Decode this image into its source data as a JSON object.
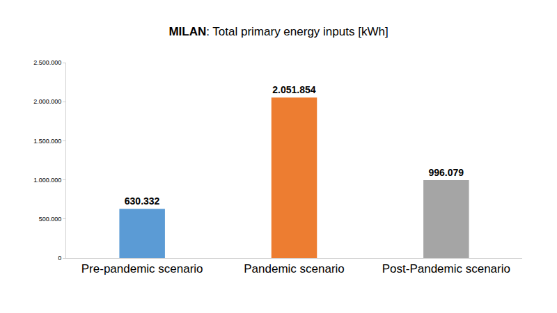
{
  "chart_data": {
    "type": "bar",
    "title": "MILAN: Total primary energy inputs [kWh]",
    "categories": [
      "Pre-pandemic scenario",
      "Pandemic scenario",
      "Post-Pandemic scenario"
    ],
    "values": [
      630332,
      2051854,
      996079
    ],
    "value_labels": [
      "630.332",
      "2.051.854",
      "996.079"
    ],
    "colors": [
      "#5b9bd5",
      "#ed7d31",
      "#a5a5a5"
    ],
    "ylim": [
      0,
      2500000
    ],
    "yticks": [
      0,
      {
        "value": 500000,
        "label": "500.000"
      },
      {
        "value": 1000000,
        "label": "1.000.000"
      },
      {
        "value": 1500000,
        "label": "1.500.000"
      },
      {
        "value": 2000000,
        "label": "2.000.000"
      },
      {
        "value": 2500000,
        "label": "2.500.000"
      }
    ],
    "grid": false,
    "data_labels": true
  }
}
